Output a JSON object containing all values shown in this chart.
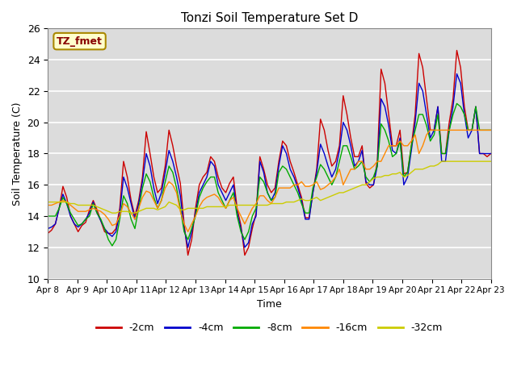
{
  "title": "Tonzi Soil Temperature Set D",
  "xlabel": "Time",
  "ylabel": "Soil Temperature (C)",
  "ylim": [
    10,
    26
  ],
  "plot_bg": "#dcdcdc",
  "annotation_text": "TZ_fmet",
  "annotation_bg": "#ffffcc",
  "annotation_border": "#aa8800",
  "legend_entries": [
    "-2cm",
    "-4cm",
    "-8cm",
    "-16cm",
    "-32cm"
  ],
  "colors": [
    "#cc0000",
    "#0000cc",
    "#00aa00",
    "#ff8800",
    "#cccc00"
  ],
  "x_labels": [
    "Apr 8",
    "Apr 9",
    "Apr 10",
    "Apr 11",
    "Apr 12",
    "Apr 13",
    "Apr 14",
    "Apr 15",
    "Apr 16",
    "Apr 17",
    "Apr 18",
    "Apr 19",
    "Apr 20",
    "Apr 21",
    "Apr 22",
    "Apr 23"
  ],
  "neg2cm_pts": [
    12.9,
    13.1,
    13.5,
    14.5,
    15.9,
    15.2,
    14.0,
    13.5,
    13.0,
    13.4,
    13.6,
    14.4,
    15.0,
    14.4,
    13.7,
    13.0,
    12.9,
    12.9,
    13.2,
    14.5,
    17.5,
    16.5,
    15.0,
    14.0,
    15.0,
    16.5,
    19.4,
    18.0,
    16.5,
    15.5,
    15.8,
    17.2,
    19.5,
    18.5,
    17.2,
    16.1,
    13.5,
    11.5,
    12.5,
    14.5,
    16.0,
    16.5,
    16.8,
    17.8,
    17.5,
    16.5,
    15.8,
    15.5,
    16.1,
    16.5,
    14.5,
    13.4,
    11.5,
    12.0,
    13.2,
    14.2,
    17.8,
    17.0,
    16.0,
    15.5,
    15.8,
    17.5,
    18.8,
    18.5,
    17.5,
    16.8,
    16.0,
    15.2,
    13.9,
    13.9,
    15.5,
    17.0,
    20.2,
    19.5,
    18.2,
    17.2,
    17.5,
    18.5,
    21.7,
    20.5,
    19.0,
    17.8,
    17.8,
    18.5,
    16.1,
    15.8,
    16.0,
    17.5,
    23.4,
    22.5,
    20.5,
    18.5,
    18.5,
    19.5,
    16.7,
    16.8,
    18.5,
    20.5,
    24.4,
    23.5,
    21.5,
    19.5,
    19.5,
    21.0,
    18.0,
    18.0,
    20.0,
    21.5,
    24.6,
    23.5,
    21.0,
    19.5,
    19.5,
    21.0,
    18.0,
    18.0,
    17.8,
    18.0
  ],
  "neg4cm_pts": [
    13.2,
    13.3,
    13.5,
    14.5,
    15.4,
    14.8,
    14.0,
    13.5,
    13.3,
    13.5,
    13.8,
    14.2,
    14.9,
    14.2,
    13.7,
    13.2,
    12.9,
    12.7,
    13.0,
    14.2,
    16.5,
    15.8,
    14.8,
    13.8,
    14.8,
    16.2,
    18.0,
    17.2,
    15.8,
    14.8,
    15.5,
    16.8,
    18.2,
    17.5,
    16.5,
    15.3,
    13.2,
    12.0,
    13.0,
    14.2,
    15.5,
    16.0,
    16.5,
    17.5,
    17.2,
    16.0,
    15.5,
    15.0,
    15.5,
    16.0,
    14.2,
    13.2,
    12.0,
    12.3,
    13.5,
    14.0,
    17.5,
    16.8,
    15.5,
    15.0,
    15.5,
    17.2,
    18.5,
    18.0,
    17.0,
    16.5,
    15.8,
    15.0,
    13.8,
    13.8,
    15.5,
    16.8,
    18.6,
    18.0,
    17.2,
    16.5,
    17.0,
    18.2,
    20.0,
    19.5,
    18.5,
    17.2,
    17.5,
    18.2,
    16.2,
    16.0,
    16.0,
    17.2,
    21.5,
    21.0,
    19.8,
    18.2,
    18.0,
    19.0,
    16.0,
    16.5,
    18.2,
    20.0,
    22.5,
    22.0,
    20.5,
    19.0,
    19.5,
    21.0,
    17.5,
    17.5,
    19.5,
    21.0,
    23.1,
    22.5,
    20.5,
    19.0,
    19.5,
    21.0,
    18.0,
    18.0,
    18.0,
    18.0
  ],
  "neg8cm_pts": [
    14.0,
    14.0,
    14.0,
    14.5,
    15.2,
    14.8,
    14.2,
    13.8,
    13.4,
    13.5,
    13.8,
    14.0,
    14.8,
    14.2,
    13.8,
    13.2,
    12.5,
    12.1,
    12.5,
    13.8,
    15.3,
    14.8,
    13.8,
    13.2,
    14.5,
    15.8,
    16.7,
    16.2,
    15.2,
    14.5,
    15.0,
    16.2,
    17.2,
    16.8,
    15.8,
    14.5,
    13.0,
    12.5,
    13.2,
    14.0,
    15.2,
    15.8,
    16.2,
    16.5,
    16.5,
    15.5,
    15.0,
    14.5,
    15.0,
    15.5,
    14.0,
    13.0,
    12.5,
    13.0,
    14.0,
    14.5,
    16.5,
    16.2,
    15.5,
    15.0,
    15.2,
    16.8,
    17.2,
    17.0,
    16.5,
    16.0,
    15.5,
    14.8,
    14.2,
    14.2,
    15.8,
    16.5,
    17.3,
    17.0,
    16.5,
    16.0,
    16.5,
    17.5,
    18.5,
    18.5,
    17.8,
    17.0,
    17.2,
    17.5,
    16.5,
    16.2,
    16.5,
    17.2,
    19.9,
    19.5,
    18.8,
    17.8,
    18.0,
    18.8,
    16.5,
    16.8,
    18.5,
    19.5,
    20.5,
    20.5,
    19.8,
    18.8,
    19.2,
    20.5,
    18.0,
    18.0,
    19.5,
    20.5,
    21.2,
    21.0,
    20.5,
    19.5,
    19.5,
    21.0,
    19.5,
    19.5,
    19.5,
    19.5
  ],
  "neg16cm_pts": [
    14.7,
    14.7,
    14.8,
    14.9,
    15.0,
    14.9,
    14.7,
    14.5,
    14.3,
    14.3,
    14.3,
    14.4,
    14.5,
    14.4,
    14.3,
    14.1,
    13.8,
    13.4,
    13.5,
    14.0,
    14.8,
    14.6,
    14.2,
    13.8,
    14.5,
    15.2,
    15.6,
    15.5,
    15.0,
    14.5,
    15.0,
    15.8,
    16.2,
    16.0,
    15.5,
    14.3,
    13.5,
    13.0,
    13.5,
    14.0,
    14.6,
    15.0,
    15.2,
    15.3,
    15.4,
    15.2,
    14.8,
    14.5,
    15.0,
    15.2,
    14.5,
    14.0,
    13.5,
    14.0,
    14.5,
    14.8,
    15.3,
    15.3,
    15.0,
    14.8,
    15.2,
    15.8,
    15.8,
    15.8,
    15.8,
    16.0,
    16.0,
    16.2,
    15.9,
    15.9,
    16.0,
    16.2,
    15.7,
    15.8,
    16.0,
    16.2,
    16.5,
    17.0,
    16.0,
    16.5,
    17.0,
    17.0,
    17.5,
    17.5,
    17.0,
    17.0,
    17.2,
    17.5,
    17.5,
    18.0,
    18.5,
    18.5,
    18.5,
    18.8,
    18.5,
    18.5,
    18.8,
    19.2,
    18.0,
    18.5,
    19.2,
    19.5,
    19.5,
    19.5,
    19.5,
    19.5,
    19.5,
    19.5,
    19.5,
    19.5,
    19.5,
    19.5,
    19.5,
    19.5,
    19.5,
    19.5,
    19.5,
    19.5
  ],
  "neg32cm_pts": [
    14.9,
    14.9,
    14.9,
    14.9,
    14.9,
    14.9,
    14.8,
    14.8,
    14.7,
    14.7,
    14.7,
    14.7,
    14.7,
    14.6,
    14.5,
    14.4,
    14.3,
    14.2,
    14.2,
    14.3,
    14.3,
    14.3,
    14.2,
    14.2,
    14.3,
    14.4,
    14.5,
    14.5,
    14.5,
    14.4,
    14.5,
    14.6,
    14.9,
    14.8,
    14.7,
    14.4,
    14.4,
    14.5,
    14.5,
    14.5,
    14.5,
    14.5,
    14.6,
    14.6,
    14.6,
    14.6,
    14.6,
    14.6,
    14.7,
    14.7,
    14.7,
    14.7,
    14.7,
    14.7,
    14.7,
    14.7,
    14.7,
    14.7,
    14.7,
    14.8,
    14.8,
    14.8,
    14.8,
    14.9,
    14.9,
    14.9,
    15.0,
    15.1,
    15.0,
    15.0,
    15.1,
    15.2,
    15.0,
    15.1,
    15.2,
    15.3,
    15.4,
    15.5,
    15.5,
    15.6,
    15.7,
    15.8,
    15.9,
    16.0,
    16.0,
    16.2,
    16.4,
    16.5,
    16.5,
    16.6,
    16.6,
    16.7,
    16.7,
    16.8,
    16.5,
    16.6,
    16.8,
    17.0,
    17.0,
    17.0,
    17.1,
    17.2,
    17.2,
    17.3,
    17.5,
    17.5,
    17.5,
    17.5,
    17.5,
    17.5,
    17.5,
    17.5,
    17.5,
    17.5,
    17.5,
    17.5,
    17.5,
    17.5
  ]
}
